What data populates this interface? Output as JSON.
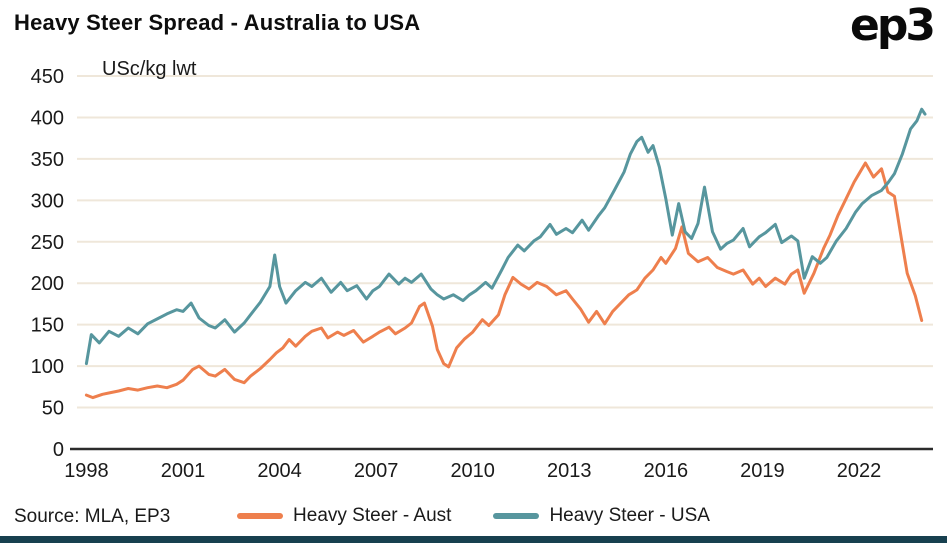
{
  "header": {
    "title": "Heavy Steer Spread - Australia to USA",
    "logo": "ep3"
  },
  "footer": {
    "source": "Source: MLA, EP3"
  },
  "chart_data": {
    "type": "line",
    "title": "Heavy Steer Spread - Australia to USA",
    "unit_label": "USc/kg lwt",
    "ylabel": "USc/kg lwt",
    "xlabel": "",
    "ylim": [
      0,
      450
    ],
    "ytick_step": 50,
    "xlim": [
      1997.8,
      2024.3
    ],
    "xticks": [
      1998,
      2001,
      2004,
      2007,
      2010,
      2013,
      2016,
      2019,
      2022
    ],
    "grid": "horizontal",
    "legend_position": "bottom",
    "colors": {
      "aust": "#EE7F4D",
      "usa": "#57969E",
      "grid": "#EFE7DA",
      "axis": "#2b2b2b",
      "tick_text": "#1a1a1a",
      "accent_bar": "#17404F"
    },
    "series": [
      {
        "name": "Heavy Steer - Aust",
        "color_key": "aust",
        "points": [
          [
            1998.0,
            65
          ],
          [
            1998.2,
            62
          ],
          [
            1998.5,
            66
          ],
          [
            1998.75,
            68
          ],
          [
            1999.0,
            70
          ],
          [
            1999.3,
            73
          ],
          [
            1999.6,
            71
          ],
          [
            1999.9,
            74
          ],
          [
            2000.2,
            76
          ],
          [
            2000.5,
            74
          ],
          [
            2000.8,
            78
          ],
          [
            2001.0,
            83
          ],
          [
            2001.3,
            96
          ],
          [
            2001.5,
            100
          ],
          [
            2001.8,
            90
          ],
          [
            2002.0,
            88
          ],
          [
            2002.3,
            96
          ],
          [
            2002.6,
            84
          ],
          [
            2002.9,
            80
          ],
          [
            2003.1,
            88
          ],
          [
            2003.4,
            97
          ],
          [
            2003.7,
            108
          ],
          [
            2003.9,
            116
          ],
          [
            2004.1,
            122
          ],
          [
            2004.3,
            132
          ],
          [
            2004.5,
            124
          ],
          [
            2004.8,
            136
          ],
          [
            2005.0,
            142
          ],
          [
            2005.3,
            146
          ],
          [
            2005.5,
            134
          ],
          [
            2005.8,
            141
          ],
          [
            2006.0,
            137
          ],
          [
            2006.3,
            143
          ],
          [
            2006.6,
            129
          ],
          [
            2006.9,
            136
          ],
          [
            2007.1,
            141
          ],
          [
            2007.4,
            147
          ],
          [
            2007.6,
            139
          ],
          [
            2007.9,
            146
          ],
          [
            2008.1,
            152
          ],
          [
            2008.35,
            172
          ],
          [
            2008.5,
            176
          ],
          [
            2008.75,
            148
          ],
          [
            2008.9,
            120
          ],
          [
            2009.1,
            103
          ],
          [
            2009.25,
            99
          ],
          [
            2009.5,
            122
          ],
          [
            2009.75,
            133
          ],
          [
            2010.0,
            141
          ],
          [
            2010.3,
            156
          ],
          [
            2010.5,
            149
          ],
          [
            2010.8,
            162
          ],
          [
            2011.0,
            186
          ],
          [
            2011.25,
            207
          ],
          [
            2011.5,
            199
          ],
          [
            2011.75,
            193
          ],
          [
            2012.0,
            201
          ],
          [
            2012.3,
            196
          ],
          [
            2012.6,
            186
          ],
          [
            2012.9,
            191
          ],
          [
            2013.1,
            181
          ],
          [
            2013.35,
            169
          ],
          [
            2013.6,
            153
          ],
          [
            2013.85,
            166
          ],
          [
            2014.1,
            151
          ],
          [
            2014.35,
            166
          ],
          [
            2014.6,
            176
          ],
          [
            2014.85,
            186
          ],
          [
            2015.1,
            192
          ],
          [
            2015.35,
            206
          ],
          [
            2015.6,
            216
          ],
          [
            2015.85,
            231
          ],
          [
            2016.0,
            224
          ],
          [
            2016.3,
            242
          ],
          [
            2016.5,
            268
          ],
          [
            2016.7,
            236
          ],
          [
            2017.0,
            226
          ],
          [
            2017.3,
            231
          ],
          [
            2017.6,
            219
          ],
          [
            2017.9,
            214
          ],
          [
            2018.1,
            211
          ],
          [
            2018.4,
            216
          ],
          [
            2018.7,
            199
          ],
          [
            2018.9,
            206
          ],
          [
            2019.1,
            196
          ],
          [
            2019.4,
            206
          ],
          [
            2019.7,
            199
          ],
          [
            2019.9,
            211
          ],
          [
            2020.1,
            216
          ],
          [
            2020.3,
            188
          ],
          [
            2020.6,
            212
          ],
          [
            2020.9,
            242
          ],
          [
            2021.1,
            258
          ],
          [
            2021.35,
            282
          ],
          [
            2021.6,
            302
          ],
          [
            2021.85,
            322
          ],
          [
            2022.0,
            332
          ],
          [
            2022.2,
            345
          ],
          [
            2022.45,
            328
          ],
          [
            2022.7,
            338
          ],
          [
            2022.9,
            310
          ],
          [
            2023.1,
            305
          ],
          [
            2023.3,
            258
          ],
          [
            2023.5,
            212
          ],
          [
            2023.75,
            185
          ],
          [
            2023.95,
            155
          ]
        ]
      },
      {
        "name": "Heavy Steer - USA",
        "color_key": "usa",
        "points": [
          [
            1998.0,
            103
          ],
          [
            1998.15,
            138
          ],
          [
            1998.4,
            128
          ],
          [
            1998.7,
            142
          ],
          [
            1999.0,
            136
          ],
          [
            1999.3,
            146
          ],
          [
            1999.6,
            139
          ],
          [
            1999.9,
            151
          ],
          [
            2000.2,
            157
          ],
          [
            2000.5,
            163
          ],
          [
            2000.8,
            168
          ],
          [
            2001.0,
            166
          ],
          [
            2001.25,
            176
          ],
          [
            2001.5,
            158
          ],
          [
            2001.8,
            149
          ],
          [
            2002.0,
            146
          ],
          [
            2002.3,
            156
          ],
          [
            2002.6,
            141
          ],
          [
            2002.9,
            152
          ],
          [
            2003.1,
            162
          ],
          [
            2003.4,
            177
          ],
          [
            2003.7,
            196
          ],
          [
            2003.85,
            234
          ],
          [
            2004.0,
            196
          ],
          [
            2004.2,
            176
          ],
          [
            2004.5,
            191
          ],
          [
            2004.8,
            201
          ],
          [
            2005.0,
            196
          ],
          [
            2005.3,
            206
          ],
          [
            2005.6,
            189
          ],
          [
            2005.9,
            201
          ],
          [
            2006.1,
            191
          ],
          [
            2006.4,
            197
          ],
          [
            2006.7,
            181
          ],
          [
            2006.9,
            191
          ],
          [
            2007.1,
            196
          ],
          [
            2007.4,
            211
          ],
          [
            2007.7,
            199
          ],
          [
            2007.9,
            206
          ],
          [
            2008.1,
            201
          ],
          [
            2008.4,
            211
          ],
          [
            2008.7,
            193
          ],
          [
            2008.9,
            186
          ],
          [
            2009.1,
            181
          ],
          [
            2009.4,
            186
          ],
          [
            2009.7,
            179
          ],
          [
            2009.9,
            186
          ],
          [
            2010.1,
            191
          ],
          [
            2010.4,
            201
          ],
          [
            2010.6,
            194
          ],
          [
            2010.9,
            216
          ],
          [
            2011.1,
            231
          ],
          [
            2011.4,
            246
          ],
          [
            2011.6,
            239
          ],
          [
            2011.9,
            251
          ],
          [
            2012.1,
            256
          ],
          [
            2012.4,
            271
          ],
          [
            2012.6,
            259
          ],
          [
            2012.9,
            266
          ],
          [
            2013.1,
            261
          ],
          [
            2013.4,
            276
          ],
          [
            2013.6,
            264
          ],
          [
            2013.9,
            281
          ],
          [
            2014.1,
            291
          ],
          [
            2014.4,
            312
          ],
          [
            2014.7,
            334
          ],
          [
            2014.9,
            356
          ],
          [
            2015.1,
            371
          ],
          [
            2015.25,
            376
          ],
          [
            2015.45,
            358
          ],
          [
            2015.6,
            366
          ],
          [
            2015.8,
            340
          ],
          [
            2016.0,
            302
          ],
          [
            2016.2,
            258
          ],
          [
            2016.4,
            296
          ],
          [
            2016.6,
            262
          ],
          [
            2016.8,
            254
          ],
          [
            2017.0,
            272
          ],
          [
            2017.2,
            316
          ],
          [
            2017.45,
            262
          ],
          [
            2017.7,
            241
          ],
          [
            2017.9,
            248
          ],
          [
            2018.1,
            252
          ],
          [
            2018.4,
            266
          ],
          [
            2018.6,
            244
          ],
          [
            2018.9,
            256
          ],
          [
            2019.1,
            261
          ],
          [
            2019.4,
            271
          ],
          [
            2019.6,
            249
          ],
          [
            2019.9,
            257
          ],
          [
            2020.1,
            251
          ],
          [
            2020.3,
            206
          ],
          [
            2020.55,
            232
          ],
          [
            2020.8,
            224
          ],
          [
            2021.0,
            231
          ],
          [
            2021.3,
            251
          ],
          [
            2021.6,
            266
          ],
          [
            2021.9,
            286
          ],
          [
            2022.1,
            296
          ],
          [
            2022.4,
            306
          ],
          [
            2022.7,
            312
          ],
          [
            2022.9,
            321
          ],
          [
            2023.1,
            332
          ],
          [
            2023.35,
            356
          ],
          [
            2023.6,
            386
          ],
          [
            2023.8,
            396
          ],
          [
            2023.95,
            410
          ],
          [
            2024.05,
            404
          ]
        ]
      }
    ]
  }
}
